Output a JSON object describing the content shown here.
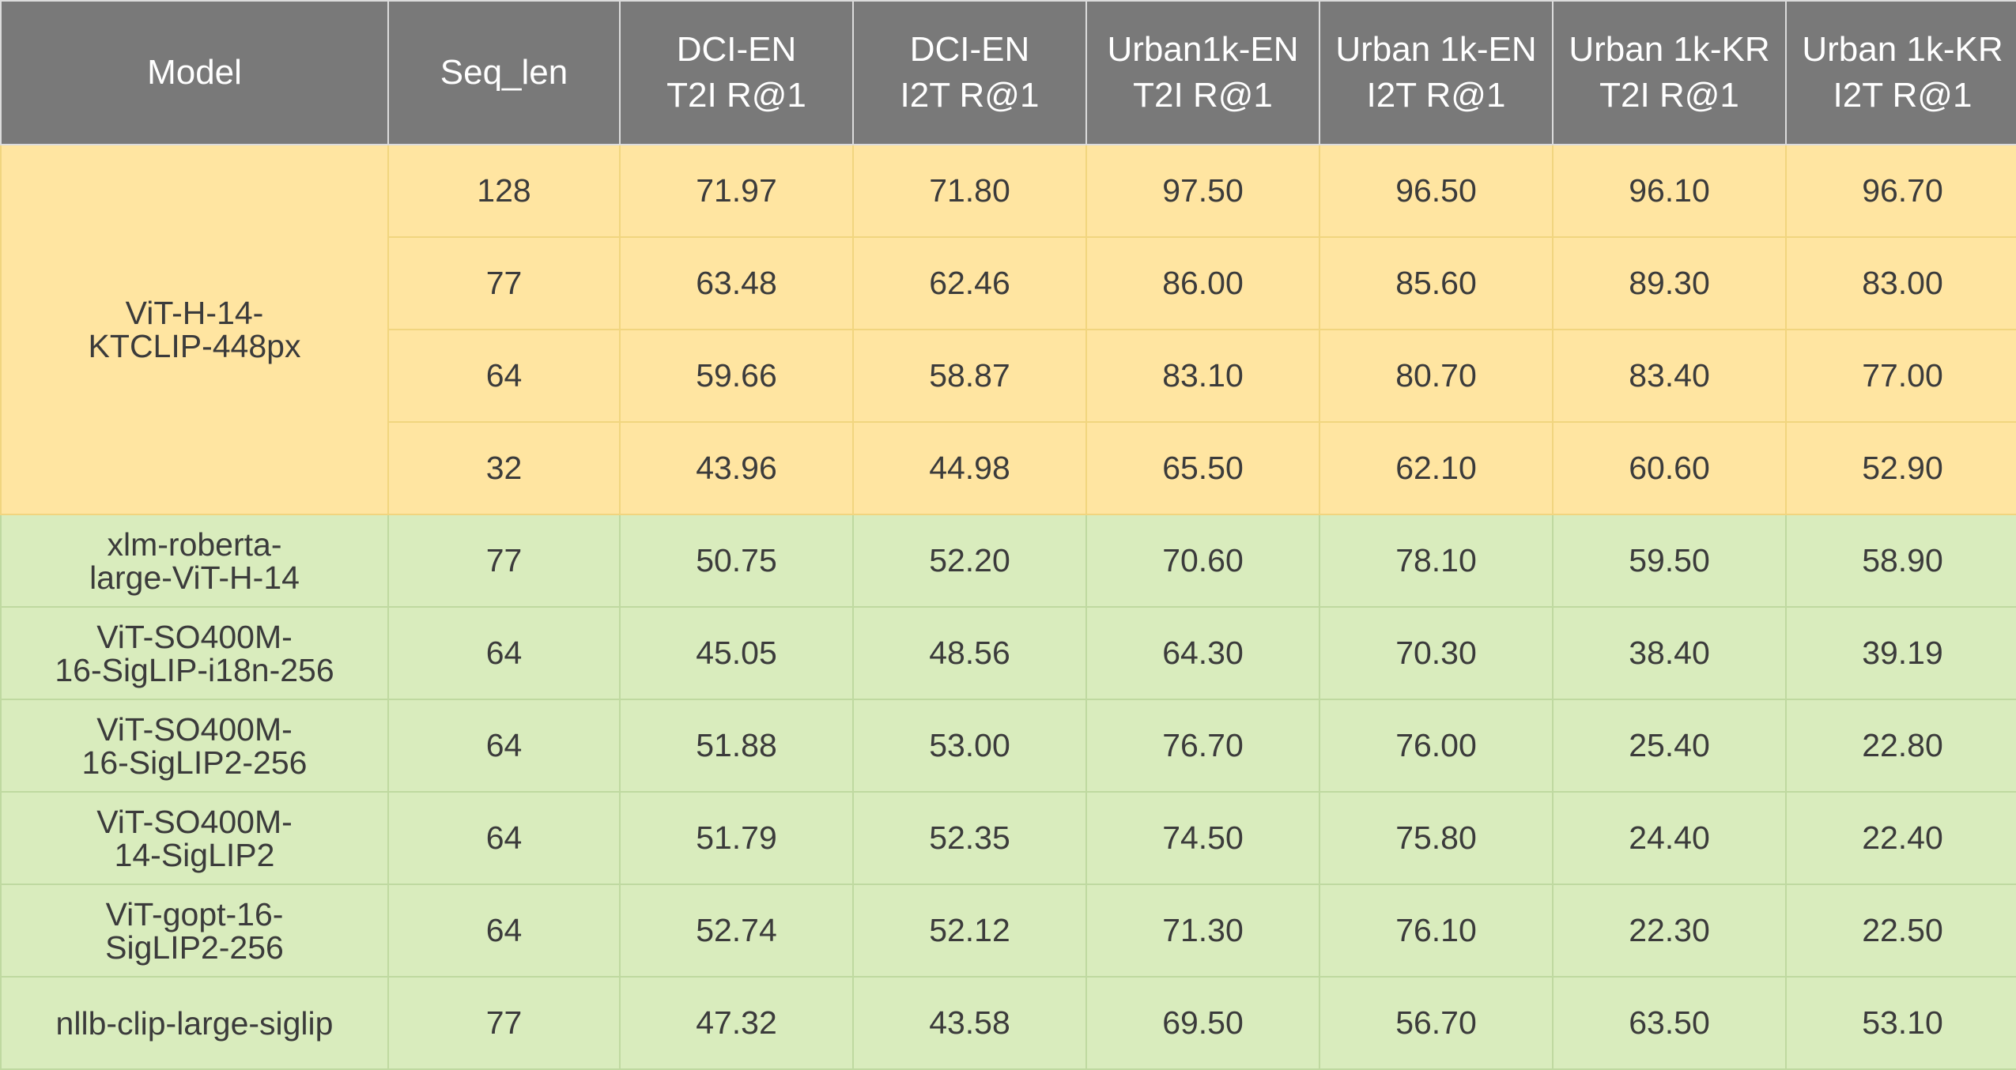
{
  "chart_data": {
    "type": "table",
    "columns": [
      [
        "Model"
      ],
      [
        "Seq_len"
      ],
      [
        "DCI-EN",
        "T2I R@1"
      ],
      [
        "DCI-EN",
        "I2T R@1"
      ],
      [
        "Urban1k-EN",
        "T2I R@1"
      ],
      [
        "Urban 1k-EN",
        "I2T R@1"
      ],
      [
        "Urban 1k-KR",
        "T2I R@1"
      ],
      [
        "Urban 1k-KR",
        "I2T R@1"
      ]
    ],
    "groups": [
      {
        "model": [
          "ViT-H-14-",
          "KTCLIP-448px"
        ],
        "rows": [
          {
            "seq_len": "128",
            "values": [
              "71.97",
              "71.80",
              "97.50",
              "96.50",
              "96.10",
              "96.70"
            ]
          },
          {
            "seq_len": "77",
            "values": [
              "63.48",
              "62.46",
              "86.00",
              "85.60",
              "89.30",
              "83.00"
            ]
          },
          {
            "seq_len": "64",
            "values": [
              "59.66",
              "58.87",
              "83.10",
              "80.70",
              "83.40",
              "77.00"
            ]
          },
          {
            "seq_len": "32",
            "values": [
              "43.96",
              "44.98",
              "65.50",
              "62.10",
              "60.60",
              "52.90"
            ]
          }
        ]
      },
      {
        "model": [
          "xlm-roberta-",
          "large-ViT-H-14"
        ],
        "rows": [
          {
            "seq_len": "77",
            "values": [
              "50.75",
              "52.20",
              "70.60",
              "78.10",
              "59.50",
              "58.90"
            ]
          }
        ]
      },
      {
        "model": [
          "ViT-SO400M-",
          "16-SigLIP-i18n-256"
        ],
        "rows": [
          {
            "seq_len": "64",
            "values": [
              "45.05",
              "48.56",
              "64.30",
              "70.30",
              "38.40",
              "39.19"
            ]
          }
        ]
      },
      {
        "model": [
          "ViT-SO400M-",
          "16-SigLIP2-256"
        ],
        "rows": [
          {
            "seq_len": "64",
            "values": [
              "51.88",
              "53.00",
              "76.70",
              "76.00",
              "25.40",
              "22.80"
            ]
          }
        ]
      },
      {
        "model": [
          "ViT-SO400M-",
          "14-SigLIP2"
        ],
        "rows": [
          {
            "seq_len": "64",
            "values": [
              "51.79",
              "52.35",
              "74.50",
              "75.80",
              "24.40",
              "22.40"
            ]
          }
        ]
      },
      {
        "model": [
          "ViT-gopt-16-",
          "SigLIP2-256"
        ],
        "rows": [
          {
            "seq_len": "64",
            "values": [
              "52.74",
              "52.12",
              "71.30",
              "76.10",
              "22.30",
              "22.50"
            ]
          }
        ]
      },
      {
        "model": [
          "nllb-clip-large-siglip"
        ],
        "rows": [
          {
            "seq_len": "77",
            "values": [
              "47.32",
              "43.58",
              "69.50",
              "56.70",
              "63.50",
              "53.10"
            ]
          }
        ]
      }
    ],
    "colors": {
      "header_bg": "#797979",
      "header_text": "#ffffff",
      "group_ktclip_bg": "#ffe5a1",
      "group_baselines_bg": "#d9ecbd",
      "cell_text": "#3b3b3b"
    }
  }
}
